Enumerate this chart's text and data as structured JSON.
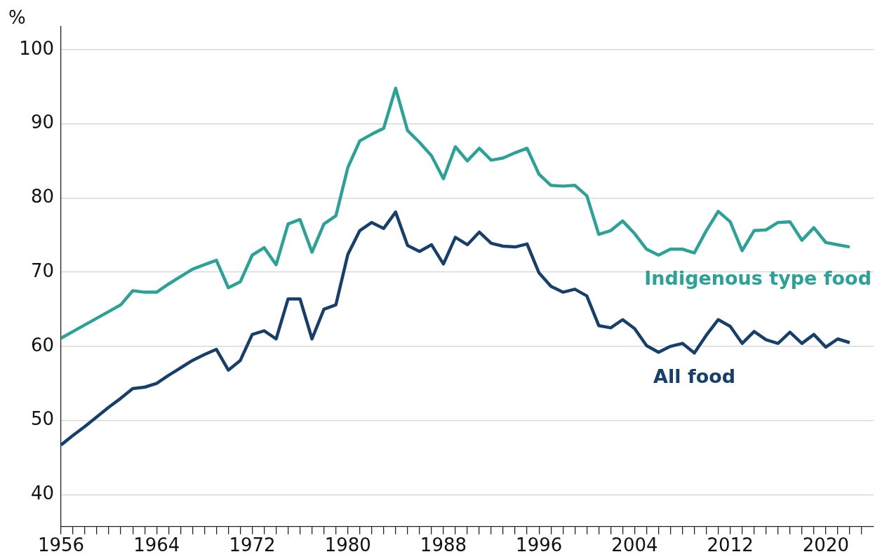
{
  "chart_data": {
    "type": "line",
    "ylabel": "%",
    "x": [
      1956,
      1957,
      1958,
      1959,
      1960,
      1961,
      1962,
      1963,
      1964,
      1965,
      1966,
      1967,
      1968,
      1969,
      1970,
      1971,
      1972,
      1973,
      1974,
      1975,
      1976,
      1977,
      1978,
      1979,
      1980,
      1981,
      1982,
      1983,
      1984,
      1985,
      1986,
      1987,
      1988,
      1989,
      1990,
      1991,
      1992,
      1993,
      1994,
      1995,
      1996,
      1997,
      1998,
      1999,
      2000,
      2001,
      2002,
      2003,
      2004,
      2005,
      2006,
      2007,
      2008,
      2009,
      2010,
      2011,
      2012,
      2013,
      2014,
      2015,
      2016,
      2017,
      2018,
      2019,
      2020,
      2021,
      2022
    ],
    "series": [
      {
        "name": "Indigenous type food",
        "color": "#2ca297",
        "values": [
          61.1,
          62.0,
          62.9,
          63.8,
          64.7,
          65.6,
          67.5,
          67.3,
          67.3,
          68.4,
          69.4,
          70.4,
          71.0,
          71.6,
          67.9,
          68.7,
          72.3,
          73.3,
          71.0,
          76.5,
          77.1,
          72.7,
          76.5,
          77.6,
          84.1,
          87.7,
          88.6,
          89.4,
          94.8,
          89.1,
          87.5,
          85.7,
          82.6,
          86.9,
          85.0,
          86.7,
          85.1,
          85.4,
          86.1,
          86.7,
          83.2,
          81.7,
          81.6,
          81.7,
          80.3,
          75.1,
          75.6,
          76.9,
          75.2,
          73.1,
          72.3,
          73.1,
          73.1,
          72.6,
          75.6,
          78.2,
          76.8,
          72.9,
          75.6,
          75.7,
          76.7,
          76.8,
          74.3,
          76.0,
          74.0,
          73.7,
          73.4
        ]
      },
      {
        "name": "All food",
        "color": "#173f6b",
        "values": [
          46.7,
          48.0,
          49.2,
          50.5,
          51.8,
          53.0,
          54.3,
          54.5,
          55.0,
          56.1,
          57.1,
          58.1,
          58.9,
          59.6,
          56.8,
          58.1,
          61.6,
          62.1,
          61.0,
          66.4,
          66.4,
          61.0,
          65.0,
          65.6,
          72.4,
          75.6,
          76.7,
          75.9,
          78.1,
          73.6,
          72.8,
          73.7,
          71.1,
          74.7,
          73.7,
          75.4,
          73.9,
          73.5,
          73.4,
          73.8,
          69.9,
          68.1,
          67.3,
          67.7,
          66.8,
          62.8,
          62.5,
          63.6,
          62.4,
          60.1,
          59.2,
          60.0,
          60.4,
          59.1,
          61.5,
          63.6,
          62.7,
          60.4,
          62.0,
          60.9,
          60.4,
          61.9,
          60.4,
          61.6,
          59.9,
          61.0,
          60.5
        ]
      }
    ],
    "xlim": [
      1956,
      2024
    ],
    "xticks": [
      1956,
      {
        "value": 1957,
        "label": null
      },
      {
        "value": 1958,
        "label": null
      },
      {
        "value": 1959,
        "label": null
      },
      {
        "value": 1960,
        "label": null
      },
      {
        "value": 1961,
        "label": null
      },
      {
        "value": 1962,
        "label": null
      },
      {
        "value": 1963,
        "label": null
      },
      1964,
      {
        "value": 1965,
        "label": null
      },
      {
        "value": 1966,
        "label": null
      },
      {
        "value": 1967,
        "label": null
      },
      {
        "value": 1968,
        "label": null
      },
      {
        "value": 1969,
        "label": null
      },
      {
        "value": 1970,
        "label": null
      },
      {
        "value": 1971,
        "label": null
      },
      1972,
      {
        "value": 1973,
        "label": null
      },
      {
        "value": 1974,
        "label": null
      },
      {
        "value": 1975,
        "label": null
      },
      {
        "value": 1976,
        "label": null
      },
      {
        "value": 1977,
        "label": null
      },
      {
        "value": 1978,
        "label": null
      },
      {
        "value": 1979,
        "label": null
      },
      1980,
      {
        "value": 1981,
        "label": null
      },
      {
        "value": 1982,
        "label": null
      },
      {
        "value": 1983,
        "label": null
      },
      {
        "value": 1984,
        "label": null
      },
      {
        "value": 1985,
        "label": null
      },
      {
        "value": 1986,
        "label": null
      },
      {
        "value": 1987,
        "label": null
      },
      1988,
      {
        "value": 1989,
        "label": null
      },
      {
        "value": 1990,
        "label": null
      },
      {
        "value": 1991,
        "label": null
      },
      {
        "value": 1992,
        "label": null
      },
      {
        "value": 1993,
        "label": null
      },
      {
        "value": 1994,
        "label": null
      },
      {
        "value": 1995,
        "label": null
      },
      1996,
      {
        "value": 1997,
        "label": null
      },
      {
        "value": 1998,
        "label": null
      },
      {
        "value": 1999,
        "label": null
      },
      {
        "value": 2000,
        "label": null
      },
      {
        "value": 2001,
        "label": null
      },
      {
        "value": 2002,
        "label": null
      },
      {
        "value": 2003,
        "label": null
      },
      2004,
      {
        "value": 2005,
        "label": null
      },
      {
        "value": 2006,
        "label": null
      },
      {
        "value": 2007,
        "label": null
      },
      {
        "value": 2008,
        "label": null
      },
      {
        "value": 2009,
        "label": null
      },
      {
        "value": 2010,
        "label": null
      },
      {
        "value": 2011,
        "label": null
      },
      2012,
      {
        "value": 2013,
        "label": null
      },
      {
        "value": 2014,
        "label": null
      },
      {
        "value": 2015,
        "label": null
      },
      {
        "value": 2016,
        "label": null
      },
      {
        "value": 2017,
        "label": null
      },
      {
        "value": 2018,
        "label": null
      },
      {
        "value": 2019,
        "label": null
      },
      2020,
      {
        "value": 2021,
        "label": null
      },
      {
        "value": 2022,
        "label": null
      },
      {
        "value": 2023,
        "label": null
      }
    ],
    "ylim": [
      35.7,
      103.1
    ],
    "yticks": [
      40,
      50,
      60,
      70,
      80,
      90,
      100
    ],
    "grid": "y",
    "legend": false,
    "marker": "none",
    "line_style": "solid"
  }
}
